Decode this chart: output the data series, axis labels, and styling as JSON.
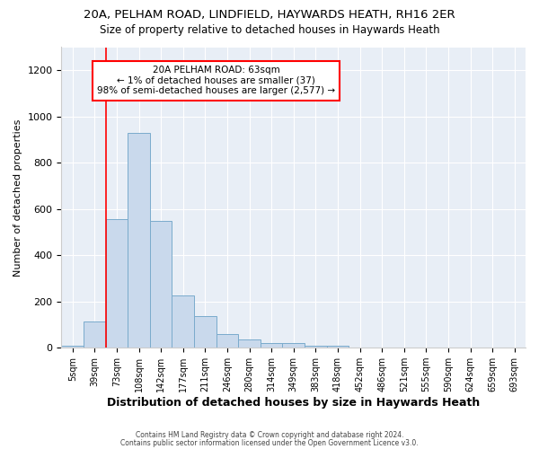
{
  "title1": "20A, PELHAM ROAD, LINDFIELD, HAYWARDS HEATH, RH16 2ER",
  "title2": "Size of property relative to detached houses in Haywards Heath",
  "xlabel": "Distribution of detached houses by size in Haywards Heath",
  "ylabel": "Number of detached properties",
  "categories": [
    "5sqm",
    "39sqm",
    "73sqm",
    "108sqm",
    "142sqm",
    "177sqm",
    "211sqm",
    "246sqm",
    "280sqm",
    "314sqm",
    "349sqm",
    "383sqm",
    "418sqm",
    "452sqm",
    "486sqm",
    "521sqm",
    "555sqm",
    "590sqm",
    "624sqm",
    "659sqm",
    "693sqm"
  ],
  "values": [
    10,
    115,
    555,
    930,
    550,
    225,
    138,
    60,
    35,
    20,
    20,
    10,
    10,
    0,
    0,
    0,
    0,
    0,
    0,
    0,
    0
  ],
  "bar_color": "#c9d9ec",
  "bar_edge_color": "#7aabcc",
  "ylim": [
    0,
    1300
  ],
  "yticks": [
    0,
    200,
    400,
    600,
    800,
    1000,
    1200
  ],
  "annotation_line1": "20A PELHAM ROAD: 63sqm",
  "annotation_line2": "← 1% of detached houses are smaller (37)",
  "annotation_line3": "98% of semi-detached houses are larger (2,577) →",
  "red_line_x": 2.0,
  "background_color": "#e8eef6",
  "footer1": "Contains HM Land Registry data © Crown copyright and database right 2024.",
  "footer2": "Contains public sector information licensed under the Open Government Licence v3.0."
}
